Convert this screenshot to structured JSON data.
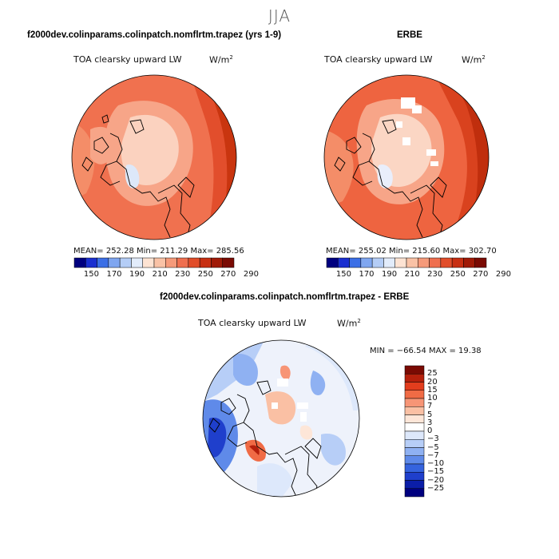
{
  "title": "JJA",
  "panels": {
    "model": {
      "heading": "f2000dev.colinparams.colinpatch.nomflrtm.trapez (yrs 1-9)",
      "variable": "TOA clearsky upward LW",
      "units": "W/m",
      "units_sup": "2",
      "stats": "MEAN= 252.28   Min= 211.29   Max= 285.56"
    },
    "obs": {
      "heading": "ERBE",
      "variable": "TOA clearsky upward LW",
      "units": "W/m",
      "units_sup": "2",
      "stats": "MEAN= 255.02   Min= 215.60   Max= 302.70"
    },
    "diff": {
      "heading": "f2000dev.colinparams.colinpatch.nomflrtm.trapez - ERBE",
      "variable": "TOA clearsky upward LW",
      "units": "W/m",
      "units_sup": "2",
      "stats": "MIN = −66.54 MAX =  19.38"
    }
  },
  "abs_colorbar": {
    "colors": [
      "#00007f",
      "#1a2fd0",
      "#3b6fe6",
      "#7fa6f0",
      "#b4cdf6",
      "#e2ecfb",
      "#fde3d3",
      "#f9c2a6",
      "#f59a7a",
      "#ef6f4f",
      "#e14d2a",
      "#c72f12",
      "#a01a07",
      "#7a0a03"
    ],
    "tick_labels": [
      "150",
      "170",
      "190",
      "210",
      "230",
      "250",
      "270",
      "290"
    ]
  },
  "diff_colorbar": {
    "colors": [
      "#7a0a03",
      "#b5200c",
      "#e23d1d",
      "#f06b45",
      "#f79576",
      "#fac0a4",
      "#fde6d8",
      "#ffffff",
      "#dde8fb",
      "#b7cef7",
      "#8fb1f2",
      "#5f8ae9",
      "#3563de",
      "#1f3fcc",
      "#0b1ea8",
      "#00007f"
    ],
    "tick_labels": [
      "25",
      "20",
      "15",
      "10",
      "7",
      "5",
      "3",
      "0",
      "−3",
      "−5",
      "−7",
      "−10",
      "−15",
      "−20",
      "−25"
    ]
  },
  "colors": {
    "land_outline": "#000000",
    "map_border": "#000000"
  }
}
